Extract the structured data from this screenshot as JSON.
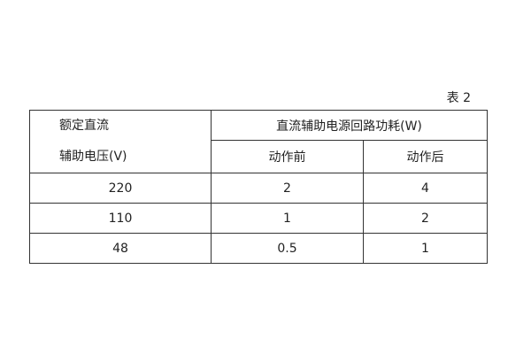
{
  "caption": "表 2",
  "table": {
    "header": {
      "col0_line1": "额定直流",
      "col0_line2": "辅助电压(V)",
      "group": "直流辅助电源回路功耗(W)",
      "sub": [
        "动作前",
        "动作后"
      ]
    },
    "rows": [
      [
        "220",
        "2",
        "4"
      ],
      [
        "110",
        "1",
        "2"
      ],
      [
        "48",
        "0.5",
        "1"
      ]
    ]
  }
}
